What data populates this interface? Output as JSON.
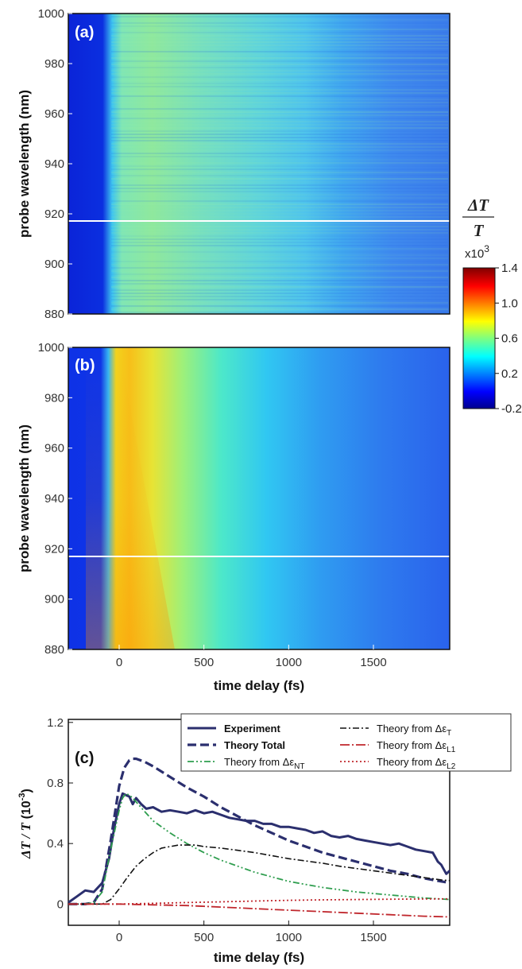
{
  "chart_data": [
    {
      "panel": "(a)",
      "type": "heatmap",
      "ylabel": "probe wavelength (nm)",
      "yticks": [
        "1000",
        "980",
        "960",
        "940",
        "920",
        "900",
        "880"
      ],
      "ylim": [
        880,
        1000
      ],
      "xlim": [
        -300,
        1950
      ],
      "marker_line_wavelength": 918,
      "colorbar": {
        "title_top": "ΔT",
        "title_bottom": "T",
        "scale": "x10",
        "scale_exp": "3",
        "ticks": [
          "1.4",
          "1.0",
          "0.6",
          "0.2",
          "-0.2"
        ],
        "range": [
          -0.2,
          1.4
        ]
      }
    },
    {
      "panel": "(b)",
      "type": "heatmap",
      "ylabel": "probe wavelength (nm)",
      "xlabel": "time delay (fs)",
      "yticks": [
        "1000",
        "980",
        "960",
        "940",
        "920",
        "900",
        "880"
      ],
      "xticks": [
        "0",
        "500",
        "1000",
        "1500"
      ],
      "xtick_values": [
        0,
        500,
        1000,
        1500
      ],
      "ylim": [
        880,
        1000
      ],
      "xlim": [
        -300,
        1950
      ],
      "marker_line_wavelength": 918
    },
    {
      "panel": "(c)",
      "type": "line",
      "ylabel_main": "ΔT / T",
      "ylabel_unit": "(10",
      "ylabel_exp": "-3",
      "ylabel_close": ")",
      "xlabel": "time delay (fs)",
      "xticks": [
        "0",
        "500",
        "1000",
        "1500"
      ],
      "xtick_values": [
        0,
        500,
        1000,
        1500
      ],
      "yticks": [
        "1.2",
        "0.8",
        "0.4",
        "0"
      ],
      "ytick_values": [
        1.2,
        0.8,
        0.4,
        0
      ],
      "xlim": [
        -300,
        1950
      ],
      "ylim": [
        -0.14,
        1.22
      ],
      "legend_placement": "top-right",
      "series": [
        {
          "name": "Experiment",
          "style": "solid",
          "color": "#2b2f6e",
          "x": [
            -300,
            -250,
            -200,
            -150,
            -100,
            -60,
            -30,
            0,
            20,
            40,
            60,
            80,
            100,
            130,
            160,
            200,
            250,
            300,
            350,
            400,
            450,
            500,
            550,
            600,
            650,
            700,
            750,
            800,
            850,
            900,
            950,
            1000,
            1050,
            1100,
            1150,
            1200,
            1250,
            1300,
            1350,
            1400,
            1450,
            1500,
            1550,
            1600,
            1650,
            1700,
            1750,
            1800,
            1850,
            1880,
            1900,
            1930,
            1950
          ],
          "y": [
            0.01,
            0.05,
            0.09,
            0.08,
            0.14,
            0.3,
            0.5,
            0.66,
            0.73,
            0.72,
            0.71,
            0.66,
            0.7,
            0.66,
            0.63,
            0.64,
            0.61,
            0.62,
            0.61,
            0.6,
            0.62,
            0.6,
            0.61,
            0.59,
            0.57,
            0.56,
            0.55,
            0.55,
            0.53,
            0.53,
            0.51,
            0.51,
            0.5,
            0.49,
            0.47,
            0.48,
            0.45,
            0.44,
            0.45,
            0.43,
            0.42,
            0.41,
            0.4,
            0.39,
            0.4,
            0.38,
            0.36,
            0.35,
            0.34,
            0.28,
            0.26,
            0.2,
            0.22
          ]
        },
        {
          "name": "Theory Total",
          "style": "dash",
          "color": "#2b2f6e",
          "x": [
            -300,
            -200,
            -150,
            -100,
            -50,
            0,
            30,
            60,
            80,
            100,
            150,
            200,
            300,
            400,
            500,
            600,
            700,
            800,
            900,
            1000,
            1100,
            1200,
            1300,
            1400,
            1500,
            1600,
            1700,
            1800,
            1900,
            1950
          ],
          "y": [
            0,
            0,
            0.01,
            0.1,
            0.42,
            0.78,
            0.9,
            0.95,
            0.96,
            0.96,
            0.94,
            0.91,
            0.84,
            0.77,
            0.71,
            0.64,
            0.58,
            0.52,
            0.47,
            0.42,
            0.38,
            0.34,
            0.31,
            0.28,
            0.25,
            0.22,
            0.2,
            0.17,
            0.15,
            0.14
          ]
        },
        {
          "name": "Theory from ΔεNT",
          "label_main": "Theory from Δε",
          "label_sub": "NT",
          "style": "dashdotdot",
          "color": "#2f9e4f",
          "x": [
            -300,
            -200,
            -150,
            -100,
            -50,
            0,
            20,
            40,
            60,
            80,
            120,
            160,
            200,
            300,
            400,
            500,
            600,
            700,
            800,
            900,
            1000,
            1200,
            1400,
            1600,
            1800,
            1950
          ],
          "y": [
            0,
            0,
            0.01,
            0.08,
            0.36,
            0.62,
            0.7,
            0.73,
            0.72,
            0.7,
            0.65,
            0.6,
            0.55,
            0.47,
            0.4,
            0.34,
            0.29,
            0.25,
            0.21,
            0.18,
            0.15,
            0.11,
            0.08,
            0.06,
            0.04,
            0.03
          ]
        },
        {
          "name": "Theory from ΔεT",
          "label_main": "Theory from Δε",
          "label_sub": "T",
          "style": "dashdot",
          "color": "#111111",
          "x": [
            -300,
            -150,
            -100,
            -50,
            0,
            50,
            100,
            150,
            200,
            250,
            300,
            350,
            400,
            450,
            500,
            600,
            700,
            800,
            900,
            1000,
            1100,
            1200,
            1300,
            1400,
            1500,
            1600,
            1700,
            1800,
            1900,
            1950
          ],
          "y": [
            0,
            0,
            0,
            0.03,
            0.1,
            0.18,
            0.25,
            0.3,
            0.34,
            0.37,
            0.38,
            0.39,
            0.39,
            0.39,
            0.38,
            0.37,
            0.355,
            0.34,
            0.32,
            0.3,
            0.285,
            0.27,
            0.25,
            0.235,
            0.22,
            0.205,
            0.19,
            0.175,
            0.16,
            0.155
          ]
        },
        {
          "name": "Theory from ΔεL1",
          "label_main": "Theory from Δε",
          "label_sub": "L1",
          "style": "longdashdot",
          "color": "#c0272d",
          "x": [
            -300,
            -100,
            0,
            200,
            400,
            600,
            800,
            1000,
            1200,
            1400,
            1600,
            1800,
            1950
          ],
          "y": [
            0,
            0,
            0,
            -0.005,
            -0.01,
            -0.02,
            -0.03,
            -0.04,
            -0.05,
            -0.06,
            -0.07,
            -0.08,
            -0.085
          ]
        },
        {
          "name": "Theory from ΔεL2",
          "label_main": "Theory from Δε",
          "label_sub": "L2",
          "style": "dot",
          "color": "#c0272d",
          "x": [
            -300,
            -100,
            0,
            200,
            400,
            600,
            800,
            1000,
            1200,
            1400,
            1600,
            1800,
            1950
          ],
          "y": [
            0,
            0,
            0.0,
            0.005,
            0.01,
            0.015,
            0.02,
            0.025,
            0.028,
            0.03,
            0.032,
            0.034,
            0.035
          ]
        }
      ]
    }
  ]
}
